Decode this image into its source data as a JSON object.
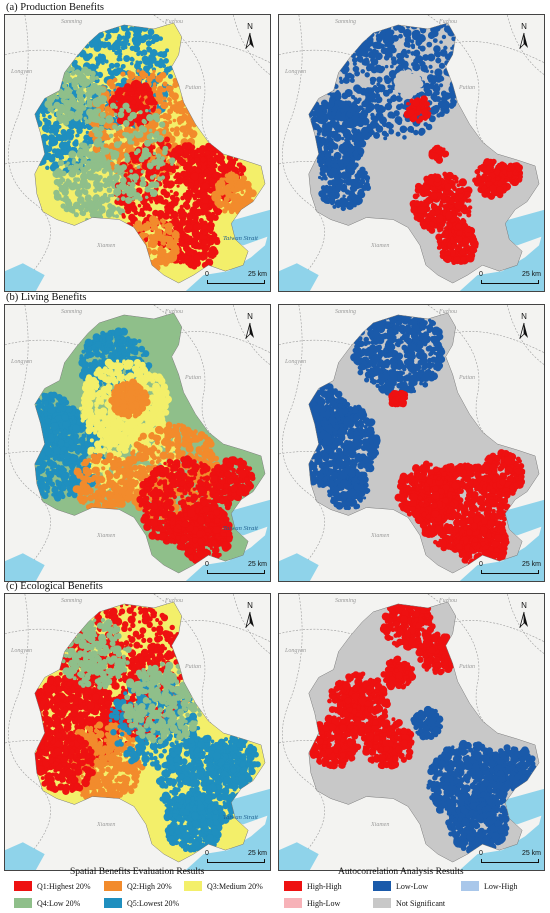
{
  "sections": [
    {
      "title": "(a) Production Benefits"
    },
    {
      "title": "(b) Living Benefits"
    },
    {
      "title": "(c) Ecological Benefits"
    }
  ],
  "map_labels": {
    "north": "N",
    "scale_zero": "0",
    "scale_end": "25 km",
    "places": [
      "Sanming",
      "Fuzhou",
      "Longyan",
      "Putian",
      "Xiamen",
      "Quanzhou"
    ],
    "strait": "Taiwan Strait"
  },
  "legend_left": {
    "title": "Spatial Benefits Evaluation Results",
    "items": [
      {
        "label": "Q1:Highest  20%",
        "color": "#ee1111"
      },
      {
        "label": "Q2:High  20%",
        "color": "#f28b2c"
      },
      {
        "label": "Q3:Medium 20%",
        "color": "#f3ef6a"
      },
      {
        "label": "Q4:Low        20%",
        "color": "#8fbf8a"
      },
      {
        "label": "Q5:Lowest  20%",
        "color": "#1f8fbf"
      }
    ]
  },
  "legend_right": {
    "title": "Autocorrelation Analysis Results",
    "items": [
      {
        "label": "High-High",
        "color": "#ee1111"
      },
      {
        "label": "Low-Low",
        "color": "#1a5aaa"
      },
      {
        "label": "Low-High",
        "color": "#a9c7ea"
      },
      {
        "label": "High-Low",
        "color": "#f7b2b8"
      },
      {
        "label": "Not Significant",
        "color": "#c8c8c8"
      }
    ]
  },
  "colors": {
    "sea": "#8fd3ea",
    "land": "#f3f3f1",
    "border": "#9b9b9b"
  }
}
